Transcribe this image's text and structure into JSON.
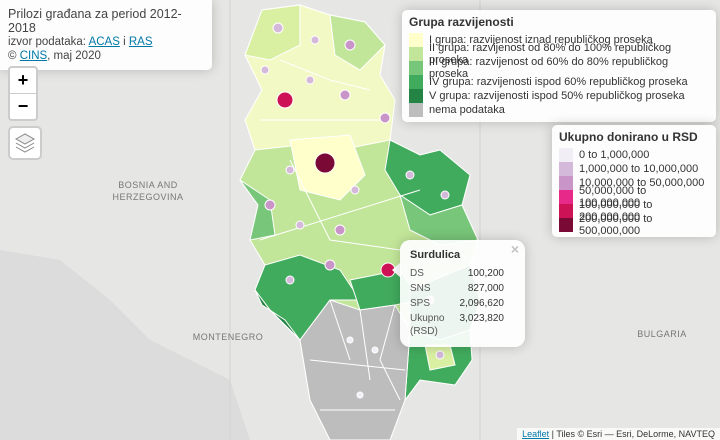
{
  "info": {
    "title": "Prilozi građana za period 2012-2018",
    "source_prefix": "izvor podataka:",
    "source_links": [
      "ACAS",
      "RAS"
    ],
    "source_joiner": "i",
    "copyright": "©",
    "copyright_link": "CINS",
    "date": ", maj 2020"
  },
  "zoom": [
    "+",
    "−"
  ],
  "places": [
    {
      "lines": [
        "BOSNIA AND",
        "HERZEGOVINA"
      ]
    },
    {
      "lines": [
        "MONTENEGRO"
      ]
    },
    {
      "lines": [
        "BULGARIA"
      ]
    }
  ],
  "legend_development": {
    "title": "Grupa razvijenosti",
    "items": [
      {
        "label": "I grupa: razvijenost iznad republičkog proseka",
        "color": "#ffffcc"
      },
      {
        "label": "II grupa:  razvijenost od 80% do 100% republičkog proseka",
        "color": "#c2e699"
      },
      {
        "label": "III grupa: razvijenost od 60% do 80% republičkog proseka",
        "color": "#78c679"
      },
      {
        "label": "IV grupa: razvijenosti ispod 60% republičkog proseka",
        "color": "#41ab5d"
      },
      {
        "label": "V grupa: razvijenosti ispod 50% republičkog proseka",
        "color": "#238443"
      },
      {
        "label": "nema podataka",
        "color": "#bdbdbd"
      }
    ]
  },
  "legend_donations": {
    "title": "Ukupno donirano u RSD",
    "items": [
      {
        "label": "0 to 1,000,000",
        "color": "#f1eef6"
      },
      {
        "label": "1,000,000 to 10,000,000",
        "color": "#d4b9da"
      },
      {
        "label": "10,000,000 to 50,000,000",
        "color": "#c994c7"
      },
      {
        "label": "50,000,000 to 100,000,000",
        "color": "#e7298a"
      },
      {
        "label": "100,000,000 to 200,000,000",
        "color": "#ce1256"
      },
      {
        "label": "200,000,000 to 500,000,000",
        "color": "#7a0a35"
      }
    ]
  },
  "popup": {
    "close": "×",
    "title": "Surdulica",
    "rows": [
      [
        "DS",
        "100,200"
      ],
      [
        "SNS",
        "827,000"
      ],
      [
        "SPS",
        "2,096,620"
      ],
      [
        "Ukupno (RSD)",
        "3,023,820"
      ]
    ]
  },
  "attribution": {
    "link": "Leaflet",
    "text": "| Tiles © Esri — Esri, DeLorme, NAVTEQ"
  }
}
